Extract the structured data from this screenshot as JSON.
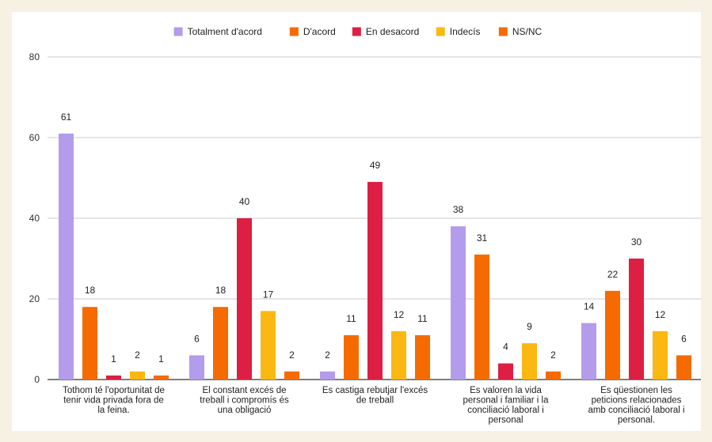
{
  "chart_data": {
    "type": "bar",
    "title": "",
    "xlabel": "",
    "ylabel": "",
    "ylim": [
      0,
      80
    ],
    "yticks": [
      0,
      20,
      40,
      60,
      80
    ],
    "grid": true,
    "legend_position": "top-center",
    "categories": [
      [
        "Tothom té l'oportunitat de",
        "tenir vida privada fora de",
        "la feina."
      ],
      [
        "El constant excés de",
        "treball i compromís és",
        "una obligació"
      ],
      [
        "Es castiga rebutjar l'excés",
        "de treball"
      ],
      [
        "Es valoren la vida",
        "personal i familiar i la",
        "conciliació laboral i",
        "personal"
      ],
      [
        "Es qüestionen les",
        "peticions relacionades",
        "amb conciliació laboral i",
        "personal."
      ]
    ],
    "series": [
      {
        "name": "Totalment d'acord",
        "color": "#b39ceb",
        "values": [
          61,
          6,
          2,
          38,
          14
        ]
      },
      {
        "name": "D'acord",
        "color": "#f56b00",
        "values": [
          18,
          18,
          11,
          31,
          22
        ]
      },
      {
        "name": "En desacord",
        "color": "#dd1f43",
        "values": [
          1,
          40,
          49,
          4,
          30
        ]
      },
      {
        "name": "Indecís",
        "color": "#fbb812",
        "values": [
          2,
          17,
          12,
          9,
          12
        ]
      },
      {
        "name": "NS/NC",
        "color": "#f56b00",
        "values": [
          1,
          2,
          11,
          2,
          6
        ]
      }
    ]
  }
}
